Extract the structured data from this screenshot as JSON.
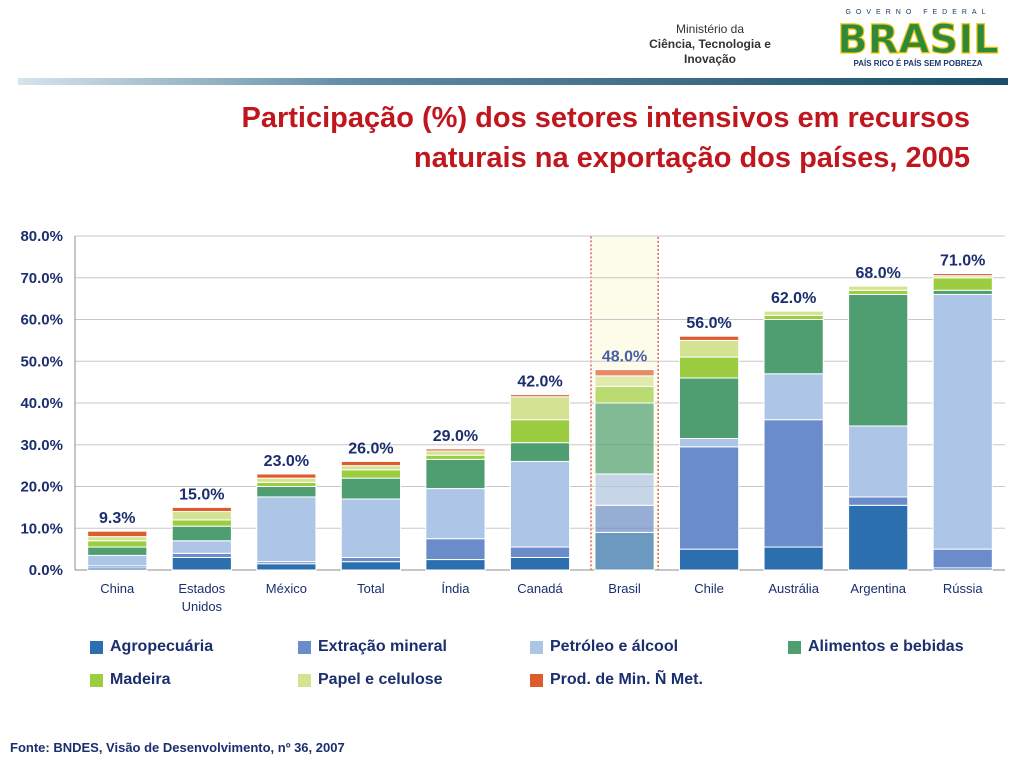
{
  "header": {
    "ministry_line1": "Ministério da",
    "ministry_line2": "Ciência, Tecnologia e",
    "ministry_line3": "Inovação",
    "gov_text": "GOVERNO FEDERAL",
    "brasil_text": "BRASIL",
    "slogan": "PAÍS RICO É PAÍS SEM POBREZA"
  },
  "title_line1": "Participação (%) dos setores intensivos em recursos",
  "title_line2": "naturais na exportação dos países, 2005",
  "source": "Fonte: BNDES, Visão de Desenvolvimento, nº 36, 2007",
  "chart_data": {
    "type": "bar",
    "stacked": true,
    "title": "Participação (%) dos setores intensivos em recursos naturais na exportação dos países, 2005",
    "categories": [
      "China",
      "Estados Unidos",
      "México",
      "Total",
      "Índia",
      "Canadá",
      "Brasil",
      "Chile",
      "Austrália",
      "Argentina",
      "Rússia"
    ],
    "highlight": "Brasil",
    "totals": [
      "9.3%",
      "15.0%",
      "23.0%",
      "26.0%",
      "29.0%",
      "42.0%",
      "48.0%",
      "56.0%",
      "62.0%",
      "68.0%",
      "71.0%"
    ],
    "ylim": [
      0,
      80
    ],
    "yticks": [
      "0.0%",
      "10.0%",
      "20.0%",
      "30.0%",
      "40.0%",
      "50.0%",
      "60.0%",
      "70.0%",
      "80.0%"
    ],
    "series": [
      {
        "name": "Agropecuária",
        "color": "#2c6fae",
        "values": [
          0.5,
          3.0,
          1.5,
          2.0,
          2.5,
          3.0,
          9.0,
          5.0,
          5.5,
          15.5,
          0.5
        ]
      },
      {
        "name": "Extração mineral",
        "color": "#6a8ccb",
        "values": [
          0.5,
          1.0,
          0.5,
          1.0,
          5.0,
          2.5,
          6.5,
          24.5,
          30.5,
          2.0,
          4.5
        ]
      },
      {
        "name": "Petróleo e álcool",
        "color": "#adc5e6",
        "values": [
          2.5,
          3.0,
          15.5,
          14.0,
          12.0,
          20.5,
          7.5,
          2.0,
          11.0,
          17.0,
          61.0
        ]
      },
      {
        "name": "Alimentos e bebidas",
        "color": "#4f9e72",
        "values": [
          2.0,
          3.5,
          2.5,
          5.0,
          7.0,
          4.5,
          17.0,
          14.5,
          13.0,
          31.5,
          1.0
        ]
      },
      {
        "name": "Madeira",
        "color": "#9ccc3f",
        "values": [
          1.5,
          1.5,
          1.0,
          2.0,
          1.0,
          5.5,
          4.0,
          5.0,
          1.0,
          1.0,
          3.0
        ]
      },
      {
        "name": "Papel e celulose",
        "color": "#d3e392",
        "values": [
          1.0,
          2.0,
          1.0,
          1.0,
          1.0,
          5.5,
          2.5,
          4.0,
          1.0,
          1.0,
          0.5
        ]
      },
      {
        "name": "Prod. de Min. Ñ Met.",
        "color": "#dd5b2c",
        "values": [
          1.3,
          1.0,
          1.0,
          1.0,
          0.5,
          0.5,
          1.5,
          1.0,
          0.0,
          0.0,
          0.5
        ]
      }
    ]
  },
  "legend_items": [
    "Agropecuária",
    "Extração mineral",
    "Petróleo e álcool",
    "Alimentos e bebidas",
    "Madeira",
    "Papel e celulose",
    "Prod. de Min. Ñ Met."
  ],
  "colors": {
    "title": "#c0161d",
    "axis_text": "#1b2e6e",
    "highlight_fill": "#fdfbea",
    "highlight_border": "#c0161d"
  }
}
